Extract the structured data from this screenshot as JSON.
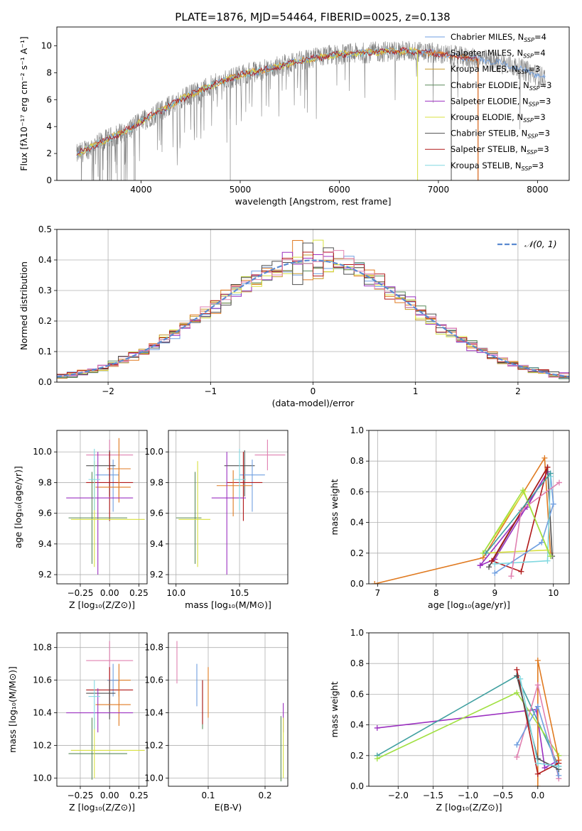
{
  "colors": {
    "chabrier_miles": "#6f9fe0",
    "salpeter_miles": "#e07a20",
    "kroupa_miles": "#c89a2a",
    "chabrier_elodie": "#5a8a5a",
    "salpeter_elodie": "#9b30c0",
    "kroupa_elodie": "#d8e040",
    "chabrier_stelib": "#505050",
    "salpeter_stelib": "#b01818",
    "kroupa_stelib": "#80d8e0",
    "pink": "#e080b0",
    "lime": "#a0e040",
    "teal": "#40a0a0",
    "data_gray": "#808080",
    "normal": "#5a8ad0"
  },
  "chart_data": [
    {
      "id": "spectrum",
      "type": "line",
      "title": "PLATE=1876, MJD=54464, FIBERID=0025, z=0.138",
      "xlabel": "wavelength [Angstrom, rest frame]",
      "ylabel": "Flux [fλ10⁻¹⁷ erg cm⁻² s⁻¹ A⁻¹]",
      "xlim": [
        3150,
        8320
      ],
      "ylim": [
        0,
        11.4
      ],
      "xticks": [
        4000,
        5000,
        6000,
        7000,
        8000
      ],
      "yticks": [
        0,
        2,
        4,
        6,
        8,
        10
      ],
      "legend_position": "upper-right",
      "legend": [
        {
          "label": "Chabrier MILES, N",
          "sub": "SSP",
          "suffix": "=4",
          "color": "chabrier_miles"
        },
        {
          "label": "Salpeter MILES, N",
          "sub": "SSP",
          "suffix": "=4",
          "color": "salpeter_miles"
        },
        {
          "label": "Kroupa MILES, N",
          "sub": "SSP",
          "suffix": "=3",
          "color": "kroupa_miles"
        },
        {
          "label": "Chabrier ELODIE, N",
          "sub": "SSP",
          "suffix": "=3",
          "color": "chabrier_elodie"
        },
        {
          "label": "Salpeter ELODIE, N",
          "sub": "SSP",
          "suffix": "=3",
          "color": "salpeter_elodie"
        },
        {
          "label": "Kroupa ELODIE, N",
          "sub": "SSP",
          "suffix": "=3",
          "color": "kroupa_elodie"
        },
        {
          "label": "Chabrier STELIB, N",
          "sub": "SSP",
          "suffix": "=3",
          "color": "chabrier_stelib"
        },
        {
          "label": "Salpeter STELIB, N",
          "sub": "SSP",
          "suffix": "=3",
          "color": "salpeter_stelib"
        },
        {
          "label": "Kroupa STELIB, N",
          "sub": "SSP",
          "suffix": "=3",
          "color": "kroupa_stelib"
        }
      ],
      "continuum": {
        "x": [
          3350,
          3500,
          3700,
          3900,
          4100,
          4300,
          4500,
          4700,
          4900,
          5100,
          5300,
          5500,
          5700,
          5900,
          6100,
          6300,
          6500,
          6700,
          6900,
          7100,
          7300,
          7500,
          7700,
          7900,
          8080
        ],
        "y": [
          1.9,
          2.5,
          3.2,
          3.9,
          4.8,
          5.6,
          6.4,
          7.0,
          7.6,
          8.0,
          8.3,
          8.7,
          9.0,
          9.3,
          9.4,
          9.5,
          9.6,
          9.6,
          9.5,
          9.3,
          9.1,
          8.9,
          8.6,
          8.1,
          7.6
        ]
      },
      "model_cutoffs": [
        {
          "series": "kroupa_elodie",
          "x": 6790
        },
        {
          "series": "salpeter_stelib",
          "x": 7400
        },
        {
          "series": "chabrier_stelib",
          "x": 7130
        },
        {
          "series": "salpeter_miles",
          "x": 7400
        }
      ]
    },
    {
      "id": "residuals",
      "type": "histogram",
      "xlabel": "(data-model)/error",
      "ylabel": "Normed distribution",
      "xlim": [
        -2.5,
        2.5
      ],
      "ylim": [
        0,
        0.5
      ],
      "xticks": [
        -2,
        -1,
        0,
        1,
        2
      ],
      "yticks": [
        0.0,
        0.1,
        0.2,
        0.3,
        0.4,
        0.5
      ],
      "legend": [
        {
          "label": "𝒩(0, 1)",
          "color": "normal"
        }
      ],
      "bin_width": 0.1
    },
    {
      "id": "age_vs_Z",
      "type": "errorbar",
      "xlabel": "Z [log₁₀(Z/Z⊙)]",
      "ylabel": "age  [log₁₀(age/yr)]",
      "xlim": [
        -0.45,
        0.32
      ],
      "ylim": [
        9.14,
        10.14
      ],
      "xticks": [
        -0.25,
        0.0,
        0.25
      ],
      "xticklabels": [
        "−0.25",
        "0.00",
        "0.25"
      ],
      "yticks": [
        9.2,
        9.4,
        9.6,
        9.8,
        10.0
      ],
      "points": [
        {
          "x": 0.0,
          "y": 9.98,
          "xerr": [
            0.2,
            0.2
          ],
          "yerr": [
            0.1,
            0.1
          ],
          "c": "pink"
        },
        {
          "x": 0.08,
          "y": 9.89,
          "xerr": [
            0.1,
            0.1
          ],
          "yerr": [
            0.2,
            0.2
          ],
          "c": "salpeter_miles"
        },
        {
          "x": 0.03,
          "y": 9.85,
          "xerr": [
            0.15,
            0.05
          ],
          "yerr": [
            0.24,
            0.1
          ],
          "c": "chabrier_miles"
        },
        {
          "x": 0.0,
          "y": 9.91,
          "xerr": [
            0.2,
            0.05
          ],
          "yerr": [
            0.2,
            0.1
          ],
          "c": "chabrier_stelib"
        },
        {
          "x": 0.0,
          "y": 9.8,
          "xerr": [
            0.2,
            0.2
          ],
          "yerr": [
            0.25,
            0.2
          ],
          "c": "salpeter_stelib"
        },
        {
          "x": 0.08,
          "y": 9.77,
          "xerr": [
            0.2,
            0.1
          ],
          "yerr": [
            0.1,
            0.1
          ],
          "c": "salpeter_miles"
        },
        {
          "x": -0.1,
          "y": 9.7,
          "xerr": [
            0.27,
            0.3
          ],
          "yerr": [
            0.5,
            0.3
          ],
          "c": "salpeter_elodie"
        },
        {
          "x": -0.15,
          "y": 9.57,
          "xerr": [
            0.2,
            0.3
          ],
          "yerr": [
            0.3,
            0.3
          ],
          "c": "chabrier_elodie"
        },
        {
          "x": -0.13,
          "y": 9.56,
          "xerr": [
            0.2,
            0.43
          ],
          "yerr": [
            0.31,
            0.38
          ],
          "c": "kroupa_elodie"
        },
        {
          "x": -0.13,
          "y": 9.82,
          "xerr": [
            0.05,
            0.05
          ],
          "yerr": [
            0.2,
            0.2
          ],
          "c": "kroupa_stelib"
        }
      ]
    },
    {
      "id": "age_vs_mass",
      "type": "errorbar",
      "xlabel": "mass [log₁₀(M/M⊙)]",
      "ylabel": "",
      "xlim": [
        9.94,
        10.88
      ],
      "ylim": [
        9.14,
        10.14
      ],
      "xticks": [
        10.0,
        10.5
      ],
      "xticklabels": [
        "10.0",
        "10.5"
      ],
      "yticks": [
        9.2,
        9.4,
        9.6,
        9.8,
        10.0
      ],
      "points": [
        {
          "x": 10.72,
          "y": 9.98,
          "xerr": [
            0.1,
            0.14
          ],
          "yerr": [
            0.1,
            0.1
          ],
          "c": "pink"
        },
        {
          "x": 10.54,
          "y": 9.91,
          "xerr": [
            0.16,
            0.08
          ],
          "yerr": [
            0.2,
            0.1
          ],
          "c": "chabrier_stelib"
        },
        {
          "x": 10.6,
          "y": 9.85,
          "xerr": [
            0.1,
            0.1
          ],
          "yerr": [
            0.24,
            0.1
          ],
          "c": "chabrier_miles"
        },
        {
          "x": 10.53,
          "y": 9.8,
          "xerr": [
            0.13,
            0.15
          ],
          "yerr": [
            0.25,
            0.2
          ],
          "c": "salpeter_stelib"
        },
        {
          "x": 10.45,
          "y": 9.78,
          "xerr": [
            0.13,
            0.15
          ],
          "yerr": [
            0.2,
            0.1
          ],
          "c": "salpeter_miles"
        },
        {
          "x": 10.4,
          "y": 9.7,
          "xerr": [
            0.12,
            0.15
          ],
          "yerr": [
            0.5,
            0.3
          ],
          "c": "salpeter_elodie"
        },
        {
          "x": 10.15,
          "y": 9.57,
          "xerr": [
            0.15,
            0.05
          ],
          "yerr": [
            0.3,
            0.3
          ],
          "c": "chabrier_elodie"
        },
        {
          "x": 10.17,
          "y": 9.56,
          "xerr": [
            0.15,
            0.1
          ],
          "yerr": [
            0.31,
            0.38
          ],
          "c": "kroupa_elodie"
        },
        {
          "x": 10.5,
          "y": 9.82,
          "xerr": [
            0.05,
            0.05
          ],
          "yerr": [
            0.2,
            0.2
          ],
          "c": "kroupa_stelib"
        }
      ]
    },
    {
      "id": "weight_vs_age",
      "type": "line",
      "xlabel": "age  [log₁₀(age/yr)]",
      "ylabel": "mass weight",
      "xlim": [
        6.85,
        10.27
      ],
      "ylim": [
        0,
        1.0
      ],
      "xticks": [
        7,
        8,
        9,
        10
      ],
      "yticks": [
        0.0,
        0.2,
        0.4,
        0.6,
        0.8,
        1.0
      ],
      "series": [
        {
          "c": "salpeter_miles",
          "x": [
            6.95,
            8.8,
            9.85,
            9.95
          ],
          "y": [
            0.0,
            0.17,
            0.82,
            0.2
          ]
        },
        {
          "c": "salpeter_elodie",
          "x": [
            8.75,
            9.55,
            9.9,
            9.0,
            8.75
          ],
          "y": [
            0.12,
            0.5,
            0.73,
            0.16,
            0.12
          ]
        },
        {
          "c": "kroupa_elodie",
          "x": [
            8.8,
            9.5,
            9.9,
            8.8
          ],
          "y": [
            0.2,
            0.6,
            0.22,
            0.2
          ]
        },
        {
          "c": "chabrier_stelib",
          "x": [
            8.9,
            9.9,
            9.98
          ],
          "y": [
            0.11,
            0.76,
            0.18
          ]
        },
        {
          "c": "salpeter_stelib",
          "x": [
            8.95,
            9.9,
            9.45,
            8.95
          ],
          "y": [
            0.15,
            0.76,
            0.08,
            0.15
          ]
        },
        {
          "c": "chabrier_miles",
          "x": [
            9.0,
            9.8,
            10.0,
            9.95
          ],
          "y": [
            0.07,
            0.27,
            0.52,
            0.72
          ]
        },
        {
          "c": "kroupa_stelib",
          "x": [
            9.0,
            9.9,
            9.95
          ],
          "y": [
            0.13,
            0.15,
            0.7
          ]
        },
        {
          "c": "pink",
          "x": [
            9.28,
            9.45,
            10.1
          ],
          "y": [
            0.05,
            0.48,
            0.66
          ]
        },
        {
          "c": "lime",
          "x": [
            8.8,
            9.48,
            9.95
          ],
          "y": [
            0.2,
            0.61,
            0.18
          ]
        },
        {
          "c": "teal",
          "x": [
            8.85,
            9.95
          ],
          "y": [
            0.2,
            0.72
          ]
        }
      ]
    },
    {
      "id": "mass_vs_Z",
      "type": "errorbar",
      "xlabel": "Z [log₁₀(Z/Z⊙)]",
      "ylabel": "mass [log₁₀(M/M⊙)]",
      "xlim": [
        -0.45,
        0.32
      ],
      "ylim": [
        9.95,
        10.89
      ],
      "xticks": [
        -0.25,
        0.0,
        0.25
      ],
      "xticklabels": [
        "−0.25",
        "0.00",
        "0.25"
      ],
      "yticks": [
        10.0,
        10.2,
        10.4,
        10.6,
        10.8
      ],
      "points": [
        {
          "x": 0.0,
          "y": 10.72,
          "xerr": [
            0.2,
            0.2
          ],
          "yerr": [
            0.14,
            0.12
          ],
          "c": "pink"
        },
        {
          "x": 0.08,
          "y": 10.6,
          "xerr": [
            0.1,
            0.1
          ],
          "yerr": [
            0.1,
            0.1
          ],
          "c": "salpeter_miles"
        },
        {
          "x": 0.03,
          "y": 10.6,
          "xerr": [
            0.05,
            0.05
          ],
          "yerr": [
            0.1,
            0.1
          ],
          "c": "chabrier_miles"
        },
        {
          "x": 0.0,
          "y": 10.54,
          "xerr": [
            0.2,
            0.2
          ],
          "yerr": [
            0.12,
            0.14
          ],
          "c": "salpeter_stelib"
        },
        {
          "x": 0.0,
          "y": 10.52,
          "xerr": [
            0.2,
            0.05
          ],
          "yerr": [
            0.16,
            0.08
          ],
          "c": "chabrier_stelib"
        },
        {
          "x": 0.08,
          "y": 10.45,
          "xerr": [
            0.2,
            0.1
          ],
          "yerr": [
            0.13,
            0.15
          ],
          "c": "salpeter_miles"
        },
        {
          "x": -0.1,
          "y": 10.4,
          "xerr": [
            0.27,
            0.3
          ],
          "yerr": [
            0.12,
            0.15
          ],
          "c": "salpeter_elodie"
        },
        {
          "x": -0.15,
          "y": 10.15,
          "xerr": [
            0.2,
            0.3
          ],
          "yerr": [
            0.16,
            0.22
          ],
          "c": "chabrier_elodie"
        },
        {
          "x": -0.13,
          "y": 10.17,
          "xerr": [
            0.2,
            0.43
          ],
          "yerr": [
            0.17,
            0.2
          ],
          "c": "kroupa_elodie"
        },
        {
          "x": -0.13,
          "y": 10.5,
          "xerr": [
            0.05,
            0.05
          ],
          "yerr": [
            0.2,
            0.1
          ],
          "c": "kroupa_stelib"
        }
      ]
    },
    {
      "id": "mass_vs_ebv",
      "type": "errorbar",
      "xlabel": "E(B-V)",
      "ylabel": "",
      "xlim": [
        0.03,
        0.24
      ],
      "ylim": [
        9.95,
        10.89
      ],
      "xticks": [
        0.1,
        0.2
      ],
      "xticklabels": [
        "0.1",
        "0.2"
      ],
      "yticks": [
        10.0,
        10.2,
        10.4,
        10.6,
        10.8
      ],
      "points": [
        {
          "x": 0.045,
          "y": 10.72,
          "yerr": [
            0.14,
            0.12
          ],
          "c": "pink"
        },
        {
          "x": 0.08,
          "y": 10.58,
          "yerr": [
            0.14,
            0.12
          ],
          "c": "chabrier_miles"
        },
        {
          "x": 0.09,
          "y": 10.45,
          "yerr": [
            0.15,
            0.15
          ],
          "c": "chabrier_elodie"
        },
        {
          "x": 0.09,
          "y": 10.5,
          "yerr": [
            0.17,
            0.1
          ],
          "c": "salpeter_stelib"
        },
        {
          "x": 0.1,
          "y": 10.52,
          "yerr": [
            0.15,
            0.16
          ],
          "c": "salpeter_miles"
        },
        {
          "x": 0.228,
          "y": 10.18,
          "yerr": [
            0.2,
            0.2
          ],
          "c": "chabrier_elodie"
        },
        {
          "x": 0.232,
          "y": 10.36,
          "yerr": [
            0.08,
            0.1
          ],
          "c": "salpeter_elodie"
        },
        {
          "x": 0.232,
          "y": 10.19,
          "yerr": [
            0.19,
            0.18
          ],
          "c": "kroupa_elodie"
        }
      ]
    },
    {
      "id": "weight_vs_Z",
      "type": "line",
      "xlabel": "Z [log₁₀(Z/Z⊙)]",
      "ylabel": "mass weight",
      "xlim": [
        -2.42,
        0.45
      ],
      "ylim": [
        0,
        1.0
      ],
      "xticks": [
        -2.0,
        -1.5,
        -1.0,
        -0.5,
        0.0
      ],
      "xticklabels": [
        "−2.0",
        "−1.5",
        "−1.0",
        "−0.5",
        "0.0"
      ],
      "yticks": [
        0.0,
        0.2,
        0.4,
        0.6,
        0.8,
        1.0
      ],
      "series": [
        {
          "c": "salpeter_elodie",
          "x": [
            -2.3,
            -0.02,
            0.1,
            0.3
          ],
          "y": [
            0.38,
            0.5,
            0.12,
            0.17
          ]
        },
        {
          "c": "teal",
          "x": [
            -2.3,
            -0.3,
            0.3
          ],
          "y": [
            0.2,
            0.72,
            0.13
          ]
        },
        {
          "c": "lime",
          "x": [
            -2.3,
            -0.3,
            0.3
          ],
          "y": [
            0.18,
            0.61,
            0.2
          ]
        },
        {
          "c": "salpeter_miles",
          "x": [
            0.0,
            0.0,
            0.3
          ],
          "y": [
            0.0,
            0.82,
            0.17
          ]
        },
        {
          "c": "pink",
          "x": [
            -0.3,
            0.0,
            0.3
          ],
          "y": [
            0.19,
            0.66,
            0.05
          ]
        },
        {
          "c": "chabrier_miles",
          "x": [
            -0.3,
            0.0,
            0.3
          ],
          "y": [
            0.27,
            0.52,
            0.07
          ]
        },
        {
          "c": "salpeter_stelib",
          "x": [
            -0.3,
            0.0,
            0.3
          ],
          "y": [
            0.76,
            0.08,
            0.15
          ]
        },
        {
          "c": "chabrier_stelib",
          "x": [
            -0.3,
            0.0,
            0.3
          ],
          "y": [
            0.72,
            0.18,
            0.11
          ]
        },
        {
          "c": "kroupa_stelib",
          "x": [
            -0.25,
            0.0,
            0.3
          ],
          "y": [
            0.7,
            0.15,
            0.13
          ]
        }
      ]
    }
  ]
}
